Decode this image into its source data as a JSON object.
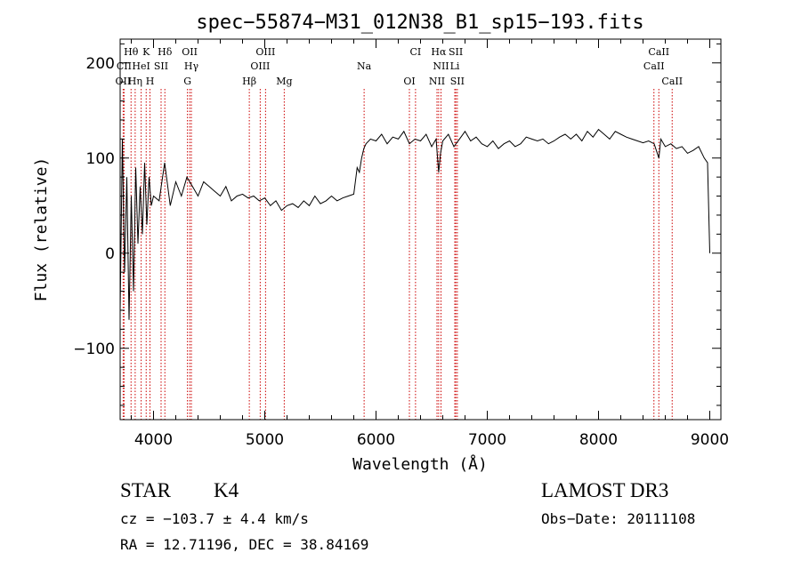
{
  "chart_data": {
    "type": "line",
    "title": "spec−55874−M31_012N38_B1_sp15−193.fits",
    "xlabel": "Wavelength (Å)",
    "ylabel": "Flux (relative)",
    "xlim": [
      3700,
      9100
    ],
    "ylim": [
      -175,
      225
    ],
    "xticks": [
      4000,
      5000,
      6000,
      7000,
      8000,
      9000
    ],
    "xtick_labels": [
      "4000",
      "5000",
      "6000",
      "7000",
      "8000",
      "9000"
    ],
    "yticks": [
      -100,
      0,
      100,
      200
    ],
    "ytick_labels": [
      "−100",
      "0",
      "100",
      "200"
    ],
    "grid": false,
    "series": [
      {
        "name": "spectrum",
        "x": [
          3700,
          3720,
          3740,
          3760,
          3780,
          3800,
          3820,
          3840,
          3860,
          3880,
          3900,
          3920,
          3940,
          3960,
          3980,
          4000,
          4050,
          4100,
          4150,
          4200,
          4250,
          4300,
          4350,
          4400,
          4450,
          4500,
          4550,
          4600,
          4650,
          4700,
          4750,
          4800,
          4850,
          4900,
          4950,
          5000,
          5050,
          5100,
          5150,
          5200,
          5250,
          5300,
          5350,
          5400,
          5450,
          5500,
          5550,
          5600,
          5650,
          5700,
          5750,
          5800,
          5830,
          5850,
          5870,
          5890,
          5910,
          5950,
          6000,
          6050,
          6100,
          6150,
          6200,
          6250,
          6300,
          6350,
          6400,
          6450,
          6500,
          6540,
          6563,
          6580,
          6600,
          6650,
          6700,
          6750,
          6800,
          6850,
          6900,
          6950,
          7000,
          7050,
          7100,
          7150,
          7200,
          7250,
          7300,
          7350,
          7400,
          7450,
          7500,
          7550,
          7600,
          7650,
          7700,
          7750,
          7800,
          7850,
          7900,
          7950,
          8000,
          8050,
          8100,
          8150,
          8200,
          8250,
          8300,
          8350,
          8400,
          8450,
          8500,
          8542,
          8560,
          8600,
          8650,
          8700,
          8750,
          8800,
          8850,
          8900,
          8950,
          8980,
          9000
        ],
        "y": [
          -60,
          120,
          -20,
          80,
          -70,
          60,
          -40,
          90,
          10,
          70,
          20,
          95,
          30,
          80,
          50,
          60,
          55,
          95,
          50,
          75,
          60,
          80,
          70,
          60,
          75,
          70,
          65,
          60,
          70,
          55,
          60,
          62,
          58,
          60,
          55,
          58,
          50,
          55,
          45,
          50,
          52,
          48,
          55,
          50,
          60,
          52,
          55,
          60,
          55,
          58,
          60,
          62,
          90,
          85,
          100,
          110,
          115,
          120,
          118,
          125,
          115,
          122,
          120,
          128,
          115,
          120,
          118,
          125,
          112,
          120,
          85,
          105,
          118,
          125,
          112,
          120,
          128,
          118,
          122,
          115,
          112,
          118,
          110,
          115,
          118,
          112,
          115,
          122,
          120,
          118,
          120,
          115,
          118,
          122,
          125,
          120,
          125,
          118,
          128,
          122,
          130,
          125,
          120,
          128,
          125,
          122,
          120,
          118,
          116,
          118,
          115,
          100,
          120,
          112,
          115,
          110,
          112,
          105,
          108,
          112,
          100,
          95,
          0
        ]
      }
    ],
    "annotations": [
      {
        "label": "Hθ",
        "wavelength": 3798,
        "row": 1
      },
      {
        "label": "K",
        "wavelength": 3934,
        "row": 1
      },
      {
        "label": "Hδ",
        "wavelength": 4102,
        "row": 1
      },
      {
        "label": "OII",
        "wavelength": 4325,
        "row": 1
      },
      {
        "label": "OIII",
        "wavelength": 5007,
        "row": 1
      },
      {
        "label": "CI",
        "wavelength": 6355,
        "row": 1
      },
      {
        "label": "Hα",
        "wavelength": 6563,
        "row": 1
      },
      {
        "label": "SII",
        "wavelength": 6717,
        "row": 1
      },
      {
        "label": "CaII",
        "wavelength": 8542,
        "row": 1
      },
      {
        "label": "CII",
        "wavelength": 3735,
        "row": 2
      },
      {
        "label": "HeI",
        "wavelength": 3889,
        "row": 2
      },
      {
        "label": "SII",
        "wavelength": 4068,
        "row": 2
      },
      {
        "label": "Hγ",
        "wavelength": 4340,
        "row": 2
      },
      {
        "label": "OIII",
        "wavelength": 4959,
        "row": 2
      },
      {
        "label": "Na",
        "wavelength": 5893,
        "row": 2
      },
      {
        "label": "NII",
        "wavelength": 6584,
        "row": 2
      },
      {
        "label": "Li",
        "wavelength": 6708,
        "row": 2
      },
      {
        "label": "CaII",
        "wavelength": 8498,
        "row": 2
      },
      {
        "label": "OII",
        "wavelength": 3727,
        "row": 3
      },
      {
        "label": "Hη",
        "wavelength": 3835,
        "row": 3
      },
      {
        "label": "H",
        "wavelength": 3968,
        "row": 3
      },
      {
        "label": "G",
        "wavelength": 4305,
        "row": 3
      },
      {
        "label": "Hβ",
        "wavelength": 4861,
        "row": 3
      },
      {
        "label": "Mg",
        "wavelength": 5175,
        "row": 3
      },
      {
        "label": "OI",
        "wavelength": 6300,
        "row": 3
      },
      {
        "label": "NII",
        "wavelength": 6548,
        "row": 3
      },
      {
        "label": "SII",
        "wavelength": 6731,
        "row": 3
      },
      {
        "label": "CaII",
        "wavelength": 8662,
        "row": 3
      }
    ]
  },
  "info": {
    "class": "STAR",
    "subclass": "K4",
    "survey": "LAMOST DR3",
    "redshift": "cz = −103.7 ± 4.4 km/s",
    "obs_date": "Obs−Date: 20111108",
    "coords": "RA =  12.71196, DEC =  38.84169"
  }
}
